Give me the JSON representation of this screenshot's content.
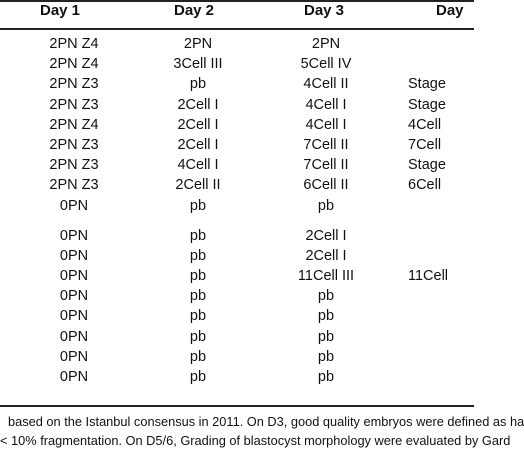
{
  "table": {
    "headers": [
      "Day 1",
      "Day 2",
      "Day 3",
      "Day"
    ],
    "rows": [
      [
        "2PN Z4",
        "2PN",
        "2PN",
        ""
      ],
      [
        "2PN Z4",
        "3Cell III",
        "5Cell IV",
        ""
      ],
      [
        "2PN Z3",
        "pb",
        "4Cell II",
        "Stage"
      ],
      [
        "2PN Z3",
        "2Cell I",
        "4Cell I",
        "Stage"
      ],
      [
        "2PN Z4",
        "2Cell I",
        "4Cell I",
        "4Cell"
      ],
      [
        "2PN Z3",
        "2Cell I",
        "7Cell II",
        "7Cell"
      ],
      [
        "2PN Z3",
        "4Cell I",
        "7Cell II",
        "Stage"
      ],
      [
        "2PN Z3",
        "2Cell II",
        "6Cell II",
        "6Cell"
      ],
      [
        "0PN",
        "pb",
        "pb",
        ""
      ],
      [
        "",
        "",
        "",
        ""
      ],
      [
        "0PN",
        "pb",
        "2Cell I",
        ""
      ],
      [
        "0PN",
        "pb",
        "2Cell I",
        ""
      ],
      [
        "0PN",
        "pb",
        "11Cell III",
        "11Cell"
      ],
      [
        "0PN",
        "pb",
        "pb",
        ""
      ],
      [
        "0PN",
        "pb",
        "pb",
        ""
      ],
      [
        "0PN",
        "pb",
        "pb",
        ""
      ],
      [
        "0PN",
        "pb",
        "pb",
        ""
      ],
      [
        "0PN",
        "pb",
        "pb",
        ""
      ]
    ]
  },
  "footnote": {
    "line1": "based on the Istanbul consensus in 2011. On D3, good quality embryos were defined as ha",
    "line2": "< 10% fragmentation. On D5/6, Grading of blastocyst morphology were evaluated by Gard"
  }
}
